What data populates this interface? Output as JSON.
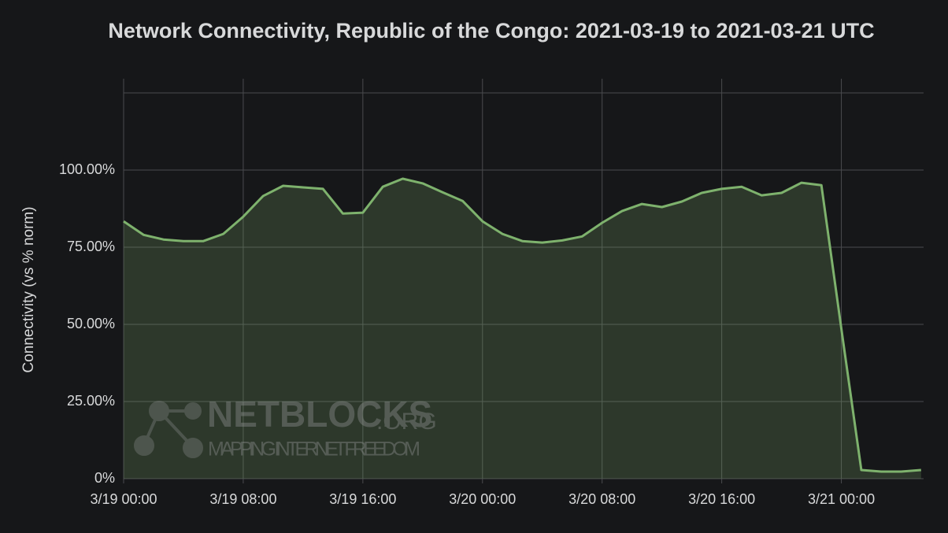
{
  "chart_data": {
    "type": "line",
    "title": "Network Connectivity, Republic of the Congo: 2021-03-19 to 2021-03-21 UTC",
    "y_label": "Connectivity (vs % norm)",
    "watermark": {
      "brand": "NETBLOCKS",
      "suffix": ".ORG",
      "tagline": "MAPPING INTERNET FREEDOM"
    },
    "x": [
      "3/19 00:00",
      "3/19 01:20",
      "3/19 02:40",
      "3/19 04:00",
      "3/19 05:20",
      "3/19 06:40",
      "3/19 08:00",
      "3/19 09:20",
      "3/19 10:40",
      "3/19 12:00",
      "3/19 13:20",
      "3/19 14:40",
      "3/19 16:00",
      "3/19 17:20",
      "3/19 18:40",
      "3/19 20:00",
      "3/19 21:20",
      "3/19 22:40",
      "3/20 00:00",
      "3/20 01:20",
      "3/20 02:40",
      "3/20 04:00",
      "3/20 05:20",
      "3/20 06:40",
      "3/20 08:00",
      "3/20 09:20",
      "3/20 10:40",
      "3/20 12:00",
      "3/20 13:20",
      "3/20 14:40",
      "3/20 16:00",
      "3/20 17:20",
      "3/20 18:40",
      "3/20 20:00",
      "3/20 21:20",
      "3/20 22:40",
      "3/21 00:00",
      "3/21 01:20",
      "3/21 02:40",
      "3/21 04:00",
      "3/21 05:20"
    ],
    "series": [
      {
        "name": "Connectivity",
        "color": "#7eb26d",
        "values": [
          83.4,
          79.0,
          77.5,
          77.0,
          77.0,
          79.3,
          84.9,
          91.6,
          94.9,
          94.4,
          93.9,
          85.9,
          86.2,
          94.6,
          97.2,
          95.7,
          92.8,
          90.0,
          83.4,
          79.3,
          77.0,
          76.5,
          77.2,
          78.5,
          82.9,
          86.7,
          89.0,
          88.0,
          89.8,
          92.6,
          93.9,
          94.6,
          91.8,
          92.6,
          95.9,
          95.1,
          48.5,
          2.8,
          2.3,
          2.3,
          2.8
        ]
      }
    ],
    "xlim": [
      "3/19 00:00",
      "3/21 05:30"
    ],
    "xticks": [
      "3/19 00:00",
      "3/19 08:00",
      "3/19 16:00",
      "3/20 00:00",
      "3/20 08:00",
      "3/20 16:00",
      "3/21 00:00"
    ],
    "ylim": [
      0,
      125
    ],
    "yticks": [
      {
        "value": 0,
        "label": "0%"
      },
      {
        "value": 25,
        "label": "25.00%"
      },
      {
        "value": 50,
        "label": "50.00%"
      },
      {
        "value": 75,
        "label": "75.00%"
      },
      {
        "value": 100,
        "label": "100.00%"
      }
    ],
    "grid": true,
    "fill_area": true
  }
}
